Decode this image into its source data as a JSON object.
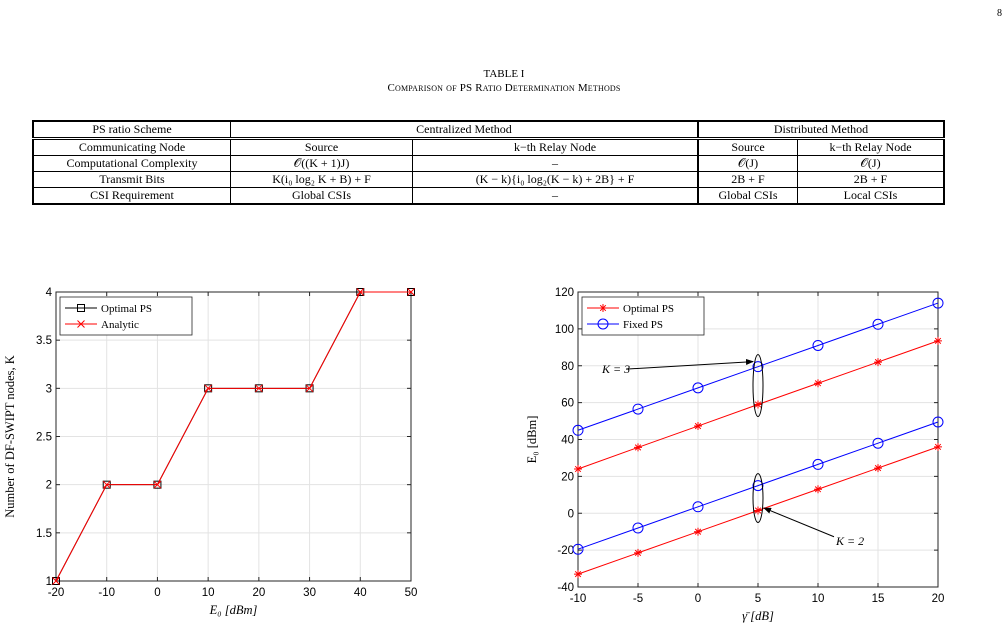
{
  "page_number": "8",
  "table": {
    "label": "TABLE I",
    "title": "Comparison of PS Ratio Determination Methods",
    "header": [
      "PS ratio Scheme",
      "Centralized Method",
      "Distributed Method"
    ],
    "subheader": [
      "Communicating Node",
      "Source",
      "k−th Relay Node",
      "Source",
      "k−th Relay Node"
    ],
    "rows": [
      [
        "Computational Complexity",
        "𝒪((K + 1)J)",
        "–",
        "𝒪(J)",
        "𝒪(J)"
      ],
      [
        "Transmit Bits",
        "K(i₀ log₂ K + B) + F",
        "(K − k){i₀ log₂(K − k) + 2B} + F",
        "2B + F",
        "2B + F"
      ],
      [
        "CSI Requirement",
        "Global CSIs",
        "–",
        "Global CSIs",
        "Local CSIs"
      ]
    ]
  },
  "chart_data": [
    {
      "type": "line",
      "xlabel": "E₀ [dBm]",
      "ylabel": "Number of DF-SWIPT nodes, K",
      "xlim": [
        -20,
        50
      ],
      "ylim": [
        1,
        4
      ],
      "xticks": [
        "-20",
        "-10",
        "0",
        "10",
        "20",
        "30",
        "40",
        "50"
      ],
      "yticks": [
        "1",
        "1.5",
        "2",
        "2.5",
        "3",
        "3.5",
        "4"
      ],
      "grid": true,
      "legend_position": "top-left",
      "x": [
        -20,
        -10,
        0,
        10,
        20,
        30,
        40,
        50
      ],
      "series": [
        {
          "name": "Optimal PS",
          "values": [
            1,
            2,
            2,
            3,
            3,
            3,
            4,
            4
          ],
          "color": "#000000",
          "marker": "square"
        },
        {
          "name": "Analytic",
          "values": [
            1,
            2,
            2,
            3,
            3,
            3,
            4,
            4
          ],
          "color": "#ff0000",
          "marker": "x"
        }
      ]
    },
    {
      "type": "line",
      "xlabel": "γ̄ [dB]",
      "ylabel": "E₀ [dBm]",
      "xlim": [
        -10,
        20
      ],
      "ylim": [
        -40,
        120
      ],
      "xticks": [
        "-10",
        "-5",
        "0",
        "5",
        "10",
        "15",
        "20"
      ],
      "yticks": [
        "-40",
        "-20",
        "0",
        "20",
        "40",
        "60",
        "80",
        "100",
        "120"
      ],
      "grid": true,
      "legend_position": "top-left",
      "x": [
        -10,
        -5,
        0,
        5,
        10,
        15,
        20
      ],
      "series": [
        {
          "name": "Optimal PS",
          "group": "K = 3",
          "values": [
            24,
            35.7,
            47.3,
            59,
            70.5,
            82,
            93.5
          ],
          "color": "#ff0000",
          "marker": "asterisk"
        },
        {
          "name": "Fixed PS",
          "group": "K = 3",
          "values": [
            45,
            56.5,
            68,
            79.5,
            91,
            102.5,
            114
          ],
          "color": "#0000ff",
          "marker": "circle"
        },
        {
          "name": "Optimal PS",
          "group": "K = 2",
          "values": [
            -33,
            -21.5,
            -10,
            1.5,
            13,
            24.5,
            36
          ],
          "color": "#ff0000",
          "marker": "asterisk"
        },
        {
          "name": "Fixed PS",
          "group": "K = 2",
          "values": [
            -19.5,
            -8,
            3.5,
            15,
            26.5,
            38,
            49.5
          ],
          "color": "#0000ff",
          "marker": "circle"
        }
      ],
      "annotations": [
        "K = 3",
        "K = 2"
      ]
    }
  ]
}
